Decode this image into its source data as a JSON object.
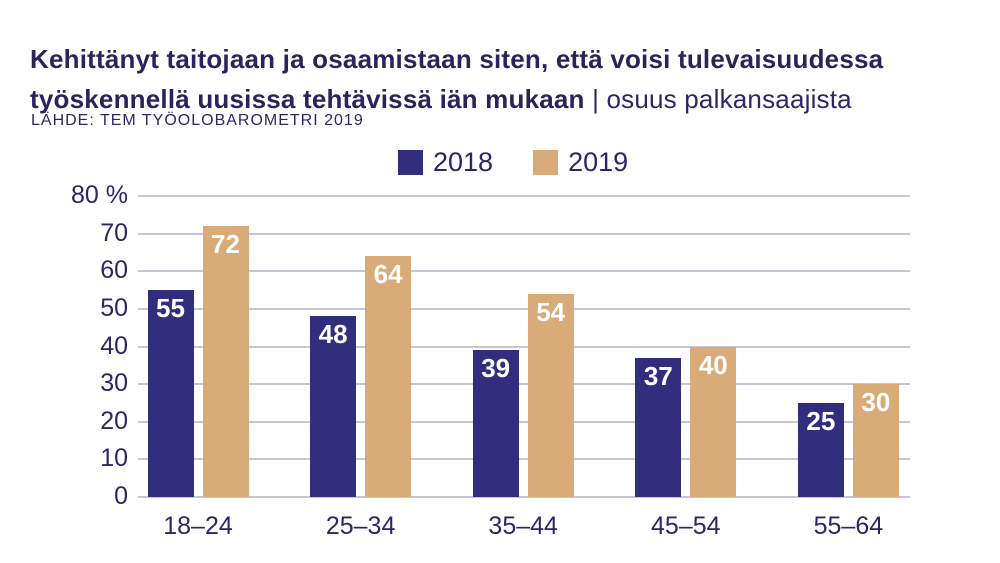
{
  "header": {
    "title_main": "Kehittänyt taitojaan ja osaamistaan siten, että voisi tulevaisuudessa työskennellä uusissa tehtävissä iän mukaan",
    "title_separator": " | ",
    "title_suffix": "osuus palkansaajista",
    "source": "LÄHDE: TEM TYÖOLOBAROMETRI 2019"
  },
  "legend": {
    "items": [
      {
        "label": "2018",
        "color": "#312E7D"
      },
      {
        "label": "2019",
        "color": "#D8AB79"
      }
    ]
  },
  "chart_data": {
    "type": "bar",
    "title": "Kehittänyt taitojaan ja osaamistaan siten, että voisi tulevaisuudessa työskennellä uusissa tehtävissä iän mukaan | osuus palkansaajista",
    "source": "LÄHDE: TEM TYÖOLOBAROMETRI 2019",
    "categories": [
      "18–24",
      "25–34",
      "35–44",
      "45–54",
      "55–64"
    ],
    "series": [
      {
        "name": "2018",
        "color": "#312E7D",
        "values": [
          55,
          48,
          39,
          37,
          25
        ]
      },
      {
        "name": "2019",
        "color": "#D8AB79",
        "values": [
          72,
          64,
          54,
          40,
          30
        ]
      }
    ],
    "ylim": [
      0,
      80
    ],
    "yticks": [
      {
        "value": 80,
        "label": "80 %"
      },
      {
        "value": 70,
        "label": "70"
      },
      {
        "value": 60,
        "label": "60"
      },
      {
        "value": 50,
        "label": "50"
      },
      {
        "value": 40,
        "label": "40"
      },
      {
        "value": 30,
        "label": "30"
      },
      {
        "value": 20,
        "label": "20"
      },
      {
        "value": 10,
        "label": "10"
      },
      {
        "value": 0,
        "label": "0"
      }
    ],
    "grid": true,
    "legend_position": "top-center",
    "value_labels": "inside-top-white"
  },
  "colors": {
    "title_text": "#29255B",
    "axis_text": "#2B2767",
    "gridline": "#C7C3D9",
    "bar_2018": "#312E7D",
    "bar_2019": "#D8AB79",
    "value_label_text": "#FFFFFF"
  }
}
